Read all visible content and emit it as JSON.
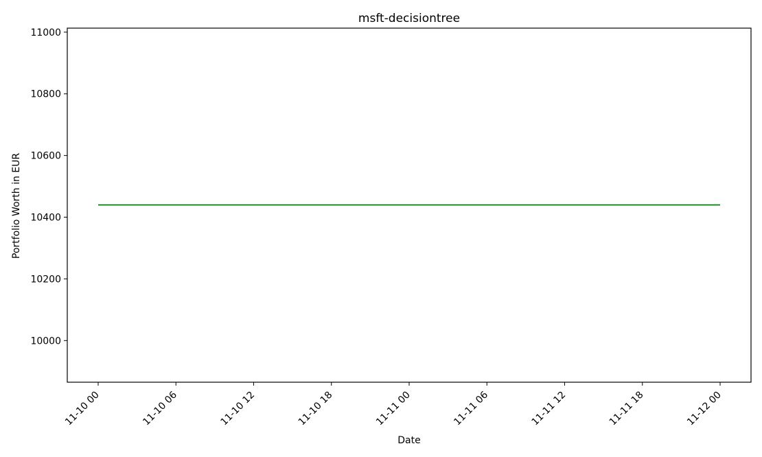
{
  "chart_data": {
    "type": "line",
    "title": "msft-decisiontree",
    "xlabel": "Date",
    "ylabel": "Portfolio Worth in EUR",
    "x_ticks": [
      "11-10 00",
      "11-10 06",
      "11-10 12",
      "11-10 18",
      "11-11 00",
      "11-11 06",
      "11-11 12",
      "11-11 18",
      "11-12 00"
    ],
    "y_ticks": [
      10000,
      10200,
      10400,
      10600,
      10800,
      11000
    ],
    "ylim": [
      9865,
      11013
    ],
    "xlim": [
      "2024-11-09 21:37",
      "2024-11-12 02:23"
    ],
    "grid": false,
    "series": [
      {
        "color": "#008000",
        "x": [
          "2024-11-10 00:00",
          "2024-11-12 00:00"
        ],
        "y": [
          10440,
          10440
        ]
      }
    ]
  }
}
